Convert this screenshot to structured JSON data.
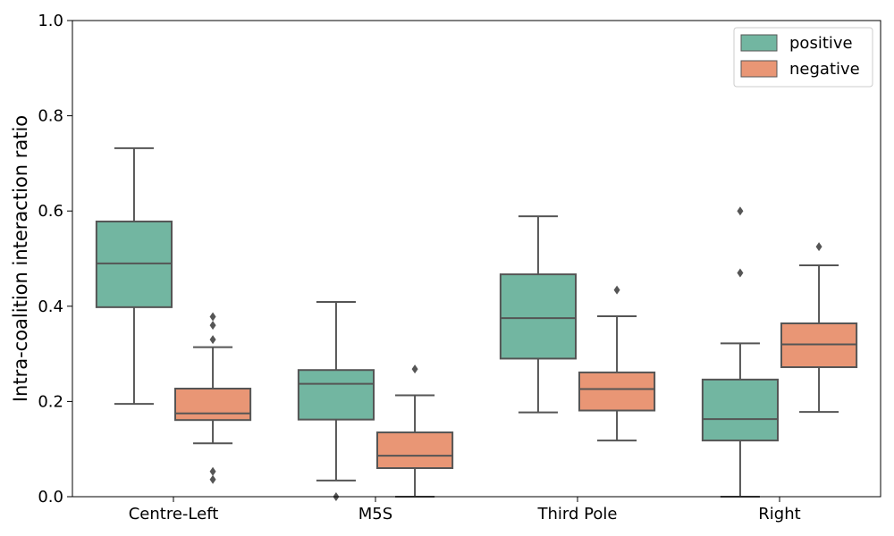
{
  "chart_data": {
    "type": "box",
    "title": "",
    "xlabel": "",
    "ylabel": "Intra-coalition interaction ratio",
    "ylim": [
      0,
      1.0
    ],
    "yticks": [
      "0.0",
      "0.2",
      "0.4",
      "0.6",
      "0.8",
      "1.0"
    ],
    "categories": [
      "Centre-Left",
      "M5S",
      "Third Pole",
      "Right"
    ],
    "legend_position": "top-right",
    "grid": false,
    "series": [
      {
        "name": "positive",
        "color": "#72b6a1",
        "boxes": [
          {
            "whisker_low": 0.195,
            "q1": 0.398,
            "median": 0.49,
            "q3": 0.578,
            "whisker_high": 0.732,
            "outliers": []
          },
          {
            "whisker_low": 0.034,
            "q1": 0.162,
            "median": 0.237,
            "q3": 0.266,
            "whisker_high": 0.409,
            "outliers": [
              0.0
            ]
          },
          {
            "whisker_low": 0.177,
            "q1": 0.29,
            "median": 0.375,
            "q3": 0.467,
            "whisker_high": 0.589,
            "outliers": []
          },
          {
            "whisker_low": 0.0,
            "q1": 0.118,
            "median": 0.163,
            "q3": 0.246,
            "whisker_high": 0.322,
            "outliers": [
              0.47,
              0.6
            ]
          }
        ]
      },
      {
        "name": "negative",
        "color": "#e99675",
        "boxes": [
          {
            "whisker_low": 0.112,
            "q1": 0.161,
            "median": 0.175,
            "q3": 0.227,
            "whisker_high": 0.314,
            "outliers": [
              0.036,
              0.053,
              0.33,
              0.36,
              0.378
            ]
          },
          {
            "whisker_low": 0.0,
            "q1": 0.06,
            "median": 0.086,
            "q3": 0.135,
            "whisker_high": 0.213,
            "outliers": [
              0.268
            ]
          },
          {
            "whisker_low": 0.118,
            "q1": 0.181,
            "median": 0.226,
            "q3": 0.261,
            "whisker_high": 0.379,
            "outliers": [
              0.434
            ]
          },
          {
            "whisker_low": 0.178,
            "q1": 0.272,
            "median": 0.32,
            "q3": 0.364,
            "whisker_high": 0.486,
            "outliers": [
              0.525
            ]
          }
        ]
      }
    ]
  }
}
